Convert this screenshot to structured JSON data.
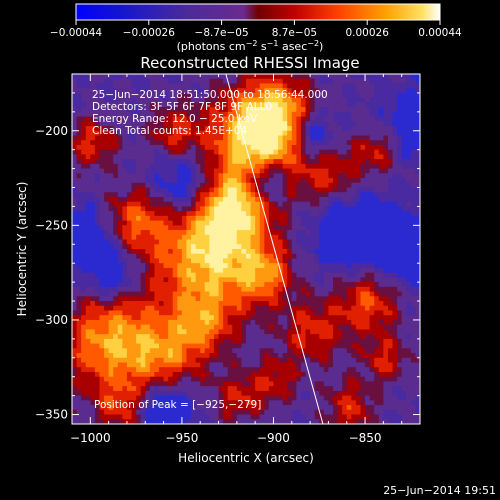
{
  "chart_data": {
    "type": "heatmap",
    "title": "Reconstructed RHESSI Image",
    "xlabel": "Heliocentric X (arcsec)",
    "ylabel": "Heliocentric Y (arcsec)",
    "xlim": [
      -1010,
      -820
    ],
    "ylim": [
      -355,
      -170
    ],
    "xticks": [
      -1000,
      -950,
      -900,
      -850
    ],
    "yticks": [
      -200,
      -250,
      -300,
      -350
    ],
    "xtick_labels": [
      "−1000",
      "−950",
      "−900",
      "−850"
    ],
    "ytick_labels": [
      "−200",
      "−250",
      "−300",
      "−350"
    ],
    "colorbar": {
      "range": [
        -0.00044,
        0.00044
      ],
      "tick_labels": [
        "−0.00044",
        "−0.00026",
        "−8.7e−05",
        "8.7e−05",
        "0.00026",
        "0.00044"
      ],
      "units_prefix": "(photons cm",
      "units_exp1": "−2",
      "units_mid": " s",
      "units_exp2": "−1",
      "units_mid2": " asec",
      "units_exp3": "−2",
      "units_suffix": ")"
    },
    "annotations": {
      "time_range": "25−Jun−2014 18:51:50.000 to 18:56:44.000",
      "detectors": "Detectors: 3F 5F 6F 7F 8F 9F ALL0",
      "energy": "Energy Range: 12.0 − 25.0 keV",
      "clean": "Clean     Total counts: 1.45E+04",
      "peak": "Position of Peak = [−925,−279]"
    },
    "limb_line": {
      "x": [
        -926,
        -873
      ],
      "y": [
        -170,
        -355
      ]
    }
  },
  "timestamp": "25−Jun−2014 19:51"
}
